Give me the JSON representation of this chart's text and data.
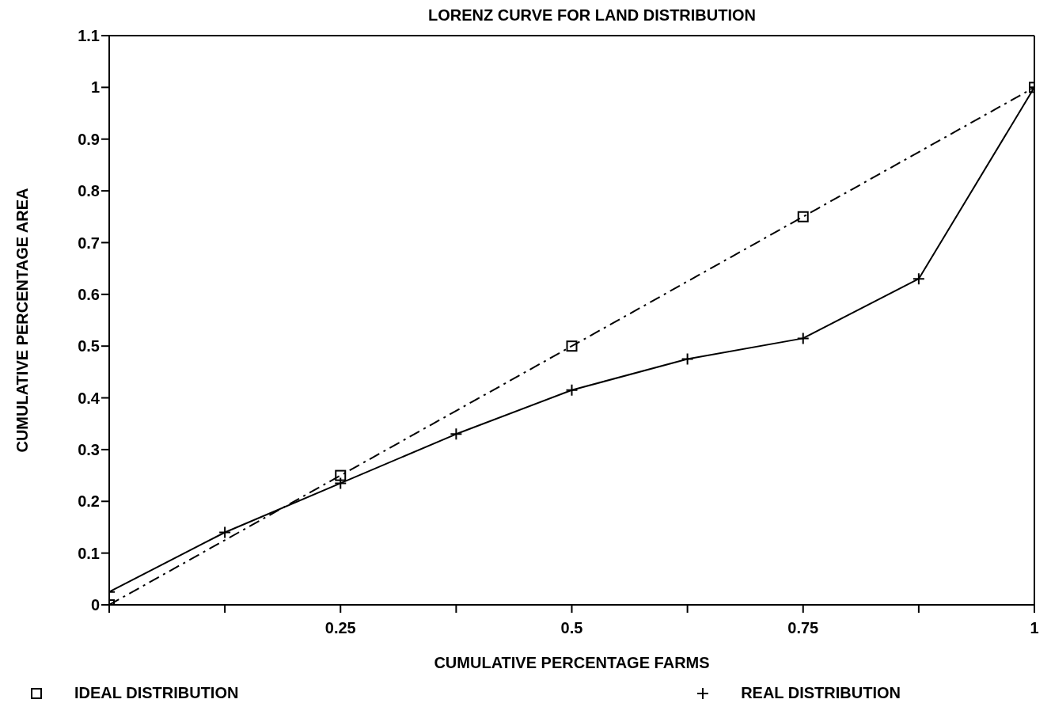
{
  "chart_data": {
    "type": "line",
    "title": "LORENZ CURVE FOR LAND DISTRIBUTION",
    "xlabel": "CUMULATIVE PERCENTAGE FARMS",
    "ylabel": "CUMULATIVE PERCENTAGE AREA",
    "xlim": [
      0,
      1
    ],
    "xticks": [
      {
        "value": 0,
        "label": null
      },
      {
        "value": 0.125,
        "label": null
      },
      0.25,
      {
        "value": 0.375,
        "label": null
      },
      0.5,
      {
        "value": 0.625,
        "label": null
      },
      0.75,
      {
        "value": 0.875,
        "label": null
      },
      1
    ],
    "ylim": [
      0,
      1.1
    ],
    "yticks": [
      0,
      0.1,
      0.2,
      0.3,
      0.4,
      0.5,
      0.6,
      0.7,
      0.8,
      0.9,
      1,
      1.1
    ],
    "legend": "bottom",
    "grid": false,
    "series": [
      {
        "name": "IDEAL DISTRIBUTION",
        "color": "#000000",
        "marker": "square",
        "line_style": "dashed",
        "x": [
          0,
          0.25,
          0.5,
          0.75,
          1
        ],
        "values": [
          0,
          0.25,
          0.5,
          0.75,
          1
        ]
      },
      {
        "name": "REAL DISTRIBUTION",
        "color": "#000000",
        "marker": "cross",
        "line_style": "solid",
        "x": [
          0,
          0.125,
          0.25,
          0.375,
          0.5,
          0.625,
          0.75,
          0.875,
          1
        ],
        "values": [
          0.025,
          0.14,
          0.235,
          0.33,
          0.415,
          0.475,
          0.515,
          0.63,
          1
        ]
      }
    ]
  }
}
